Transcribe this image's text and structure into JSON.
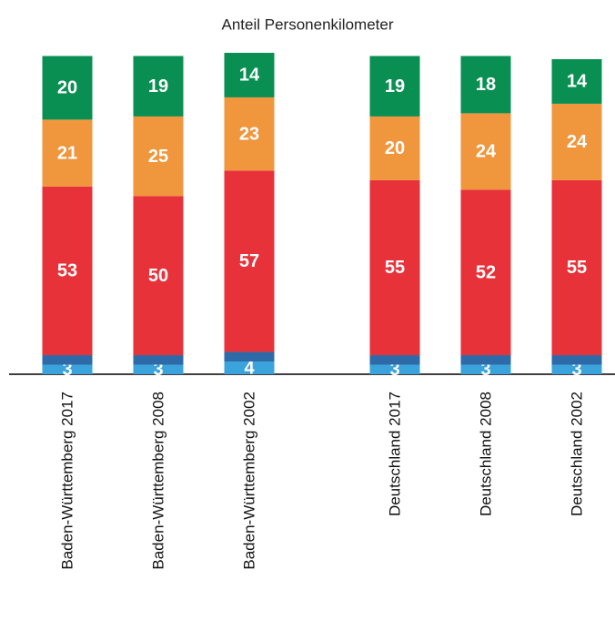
{
  "chart_data": {
    "type": "stacked_bar",
    "title": "Anteil Personenkilometer",
    "categories": [
      "Baden-Württemberg 2017",
      "Baden-Württemberg 2008",
      "Baden-Württemberg 2002",
      "Deutschland 2017",
      "Deutschland 2008",
      "Deutschland 2002"
    ],
    "series": [
      {
        "color": "#3ba3dc",
        "values": [
          3,
          3,
          4,
          3,
          3,
          3
        ]
      },
      {
        "color": "#2e6aa8",
        "values": [
          3,
          3,
          3,
          3,
          3,
          3
        ]
      },
      {
        "color": "#e8323a",
        "values": [
          53,
          50,
          57,
          55,
          52,
          55
        ]
      },
      {
        "color": "#f0963c",
        "values": [
          21,
          25,
          23,
          20,
          24,
          24
        ]
      },
      {
        "color": "#0a8f53",
        "values": [
          20,
          19,
          14,
          19,
          18,
          14
        ]
      }
    ]
  }
}
